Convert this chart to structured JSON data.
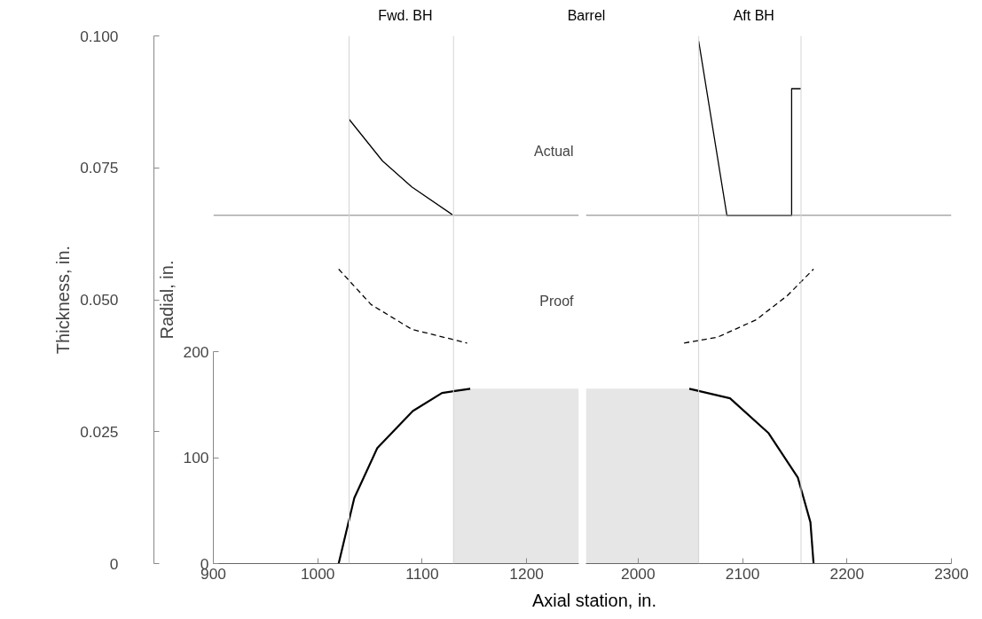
{
  "chart_data": [
    {
      "type": "line",
      "xlabel": "Axial station, in.",
      "ylabel": "Thickness, in.",
      "y2label": "Radial, in.",
      "xlim": [
        900,
        1250
      ],
      "xticks": [
        900,
        1000,
        1100,
        1200
      ],
      "ylim": [
        0,
        0.1
      ],
      "yticks": [
        0,
        0.025,
        {
          "value": 0.05,
          "label": "0.050"
        },
        0.075,
        {
          "value": 0.1,
          "label": "0.100"
        }
      ],
      "y2lim": [
        0,
        498
      ],
      "y2ticks": [
        0,
        100,
        200
      ],
      "ref_lines": [
        {
          "axis": "y",
          "value": 0.066,
          "color": "#808080"
        },
        {
          "axis": "x",
          "value": 1030,
          "color": "#d4d4d4"
        },
        {
          "axis": "x",
          "value": 1130,
          "color": "#d4d4d4"
        }
      ],
      "annotations": [
        "Fwd. BH",
        "Barrel"
      ],
      "series": [
        {
          "name": "Actual",
          "color": "#000000",
          "line_style": "solid",
          "x": [
            1030,
            1062,
            1090,
            1129
          ],
          "values": [
            0.0842,
            0.0763,
            0.0714,
            0.0661
          ]
        },
        {
          "name": "Proof",
          "color": "#000000",
          "line_style": "dashed",
          "x": [
            1020,
            1051,
            1090,
            1143
          ],
          "values": [
            0.0558,
            0.0491,
            0.0444,
            0.0418
          ]
        },
        {
          "type": "area",
          "axis": "y2",
          "color": "#e6e6e6",
          "x": [
            1130,
            1250
          ],
          "values": [
            165,
            165
          ]
        },
        {
          "color": "#000000",
          "axis": "y2",
          "line_style": "solid",
          "x": [
            1020,
            1035,
            1057,
            1091,
            1119,
            1146
          ],
          "values": [
            0,
            62,
            109,
            144,
            161,
            165
          ]
        }
      ]
    },
    {
      "type": "line",
      "tick_labels": "x",
      "xlim": [
        1950,
        2300
      ],
      "xticks": [
        2000,
        2100,
        2200,
        2300
      ],
      "ylim": [
        0,
        0.1
      ],
      "y2lim": [
        0,
        498
      ],
      "ref_lines": [
        {
          "axis": "y",
          "value": 0.066,
          "color": "#808080"
        },
        {
          "axis": "x",
          "value": 2058,
          "color": "#d4d4d4"
        },
        {
          "axis": "x",
          "value": 2156,
          "color": "#d4d4d4"
        }
      ],
      "annotations": [
        "Aft BH"
      ],
      "series": [
        {
          "color": "#000000",
          "line_style": "solid",
          "x": [
            2058,
            2085,
            2147,
            2147,
            2156
          ],
          "values": [
            0.099,
            0.066,
            0.066,
            0.09,
            0.09
          ]
        },
        {
          "color": "#000000",
          "line_style": "dashed",
          "x": [
            2044,
            2076,
            2113,
            2143,
            2168
          ],
          "values": [
            0.0418,
            0.0429,
            0.0462,
            0.0508,
            0.0558
          ]
        },
        {
          "type": "area",
          "axis": "y2",
          "color": "#e6e6e6",
          "x": [
            1950,
            2058
          ],
          "values": [
            165,
            165
          ]
        },
        {
          "color": "#000000",
          "axis": "y2",
          "line_style": "solid",
          "x": [
            2049,
            2088,
            2125,
            2153,
            2165,
            2168
          ],
          "values": [
            165,
            156,
            123,
            81,
            39,
            0
          ]
        }
      ]
    }
  ]
}
